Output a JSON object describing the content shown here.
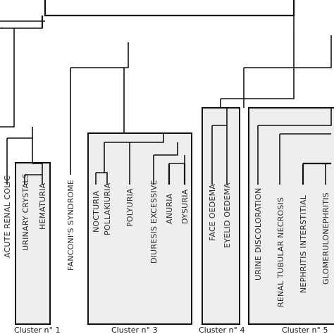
{
  "leaves": {
    "acute_renal_colic": "ACUTE RENAL COLIC",
    "urinary_crystals": "URINARY CRYSTALS",
    "hematuria": "HEMATURIA",
    "fanconi_syndrome": "FANCONI'S SYNDROME",
    "nocturia": "NOCTURIA",
    "pollakiuria": "POLLAKIURIA",
    "polyuria": "POLYURIA",
    "diuresis_excessive": "DIURESIS EXCESSIVE",
    "anuria": "ANURIA",
    "dysuria": "DYSURIA",
    "face_oedema": "FACE OEDEMA",
    "eyelid_oedema": "EYELID OEDEMA",
    "urine_discoloration": "URINE DISCOLORATION",
    "renal_tubular_necrosis": "RENAL TUBULAR NECROSIS",
    "nephritis_interstitial": "NEPHRITIS INTERSTITIAL",
    "glomerulonephritis": "GLOMERULONEPHRITIS"
  },
  "clusters": {
    "c1": "Cluster n° 1",
    "c3": "Cluster n° 3",
    "c4": "Cluster n° 4",
    "c5": "Cluster n° 5"
  },
  "colors": {
    "box_fill": "#eeeeee",
    "line": "#111111",
    "text": "#2a2a2a"
  }
}
